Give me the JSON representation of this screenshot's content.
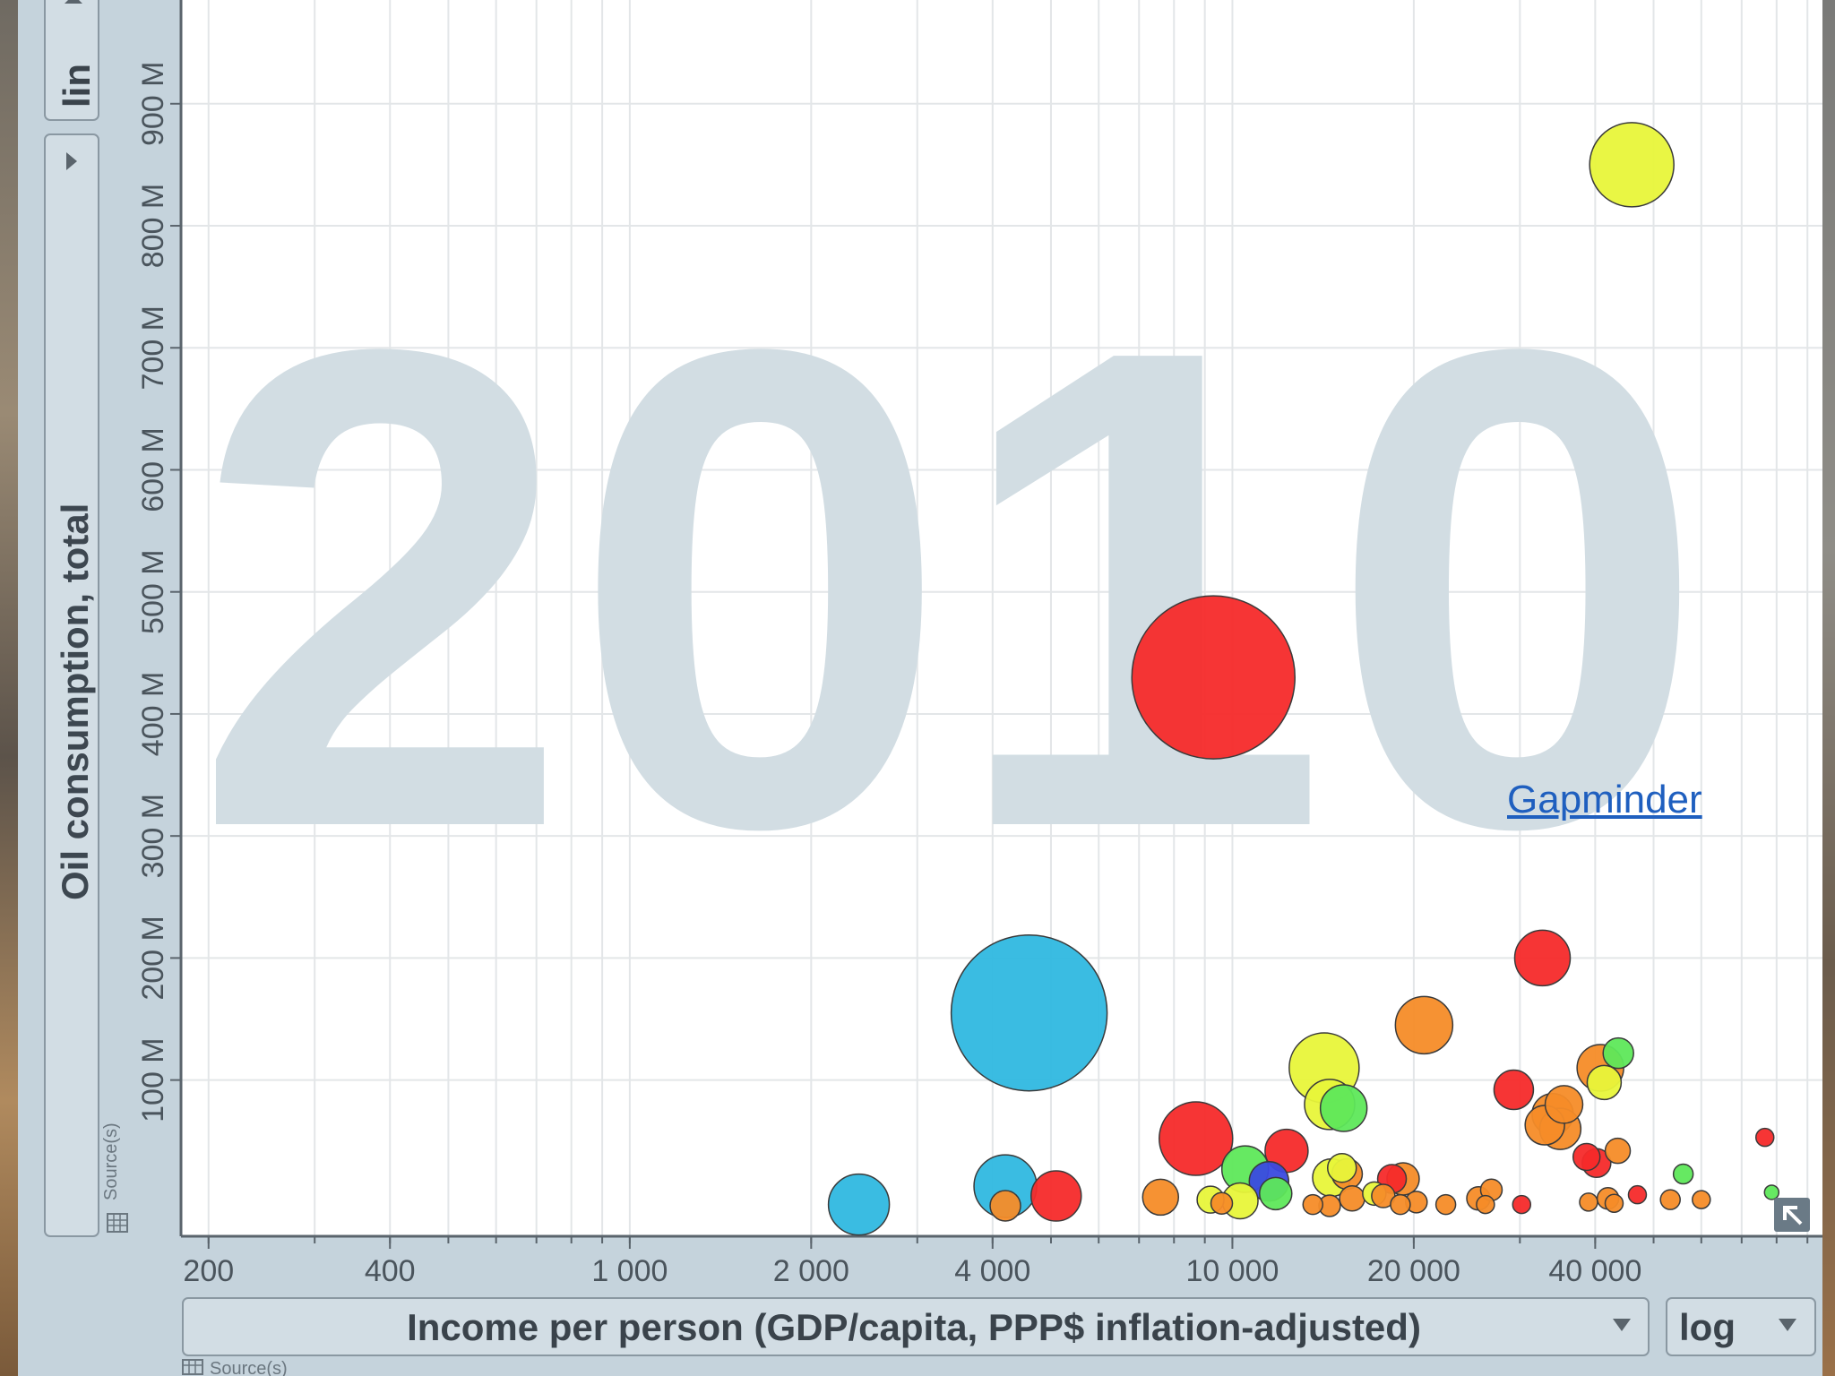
{
  "credit": {
    "label": "Gapminder"
  },
  "controls": {
    "y_scale": "lin",
    "x_scale": "log",
    "source_label": "Source(s)"
  },
  "colors": {
    "plot_bg": "#ffffff",
    "grid": "#e3e6e8",
    "axis": "#5a646c",
    "watermark": "#d2dde3",
    "bubble_stroke": "#3a3a3a"
  },
  "chart_data": {
    "type": "scatter",
    "year": "2010",
    "xlabel": "Income per person (GDP/capita, PPP$ inflation-adjusted)",
    "ylabel": "Oil consumption, total",
    "x_scale": "log",
    "y_scale": "linear",
    "xlim": [
      180,
      100000
    ],
    "ylim": [
      -28,
      985
    ],
    "x_ticks": [
      {
        "value": 200,
        "label": "200"
      },
      {
        "value": 400,
        "label": "400"
      },
      {
        "value": 1000,
        "label": "1 000"
      },
      {
        "value": 2000,
        "label": "2 000"
      },
      {
        "value": 4000,
        "label": "4 000"
      },
      {
        "value": 10000,
        "label": "10 000"
      },
      {
        "value": 20000,
        "label": "20 000"
      },
      {
        "value": 40000,
        "label": "40 000"
      }
    ],
    "y_ticks": [
      {
        "value": 100,
        "label": "100 M"
      },
      {
        "value": 200,
        "label": "200 M"
      },
      {
        "value": 300,
        "label": "300 M"
      },
      {
        "value": 400,
        "label": "400 M"
      },
      {
        "value": 500,
        "label": "500 M"
      },
      {
        "value": 600,
        "label": "600 M"
      },
      {
        "value": 700,
        "label": "700 M"
      },
      {
        "value": 800,
        "label": "800 M"
      },
      {
        "value": 900,
        "label": "900 M"
      }
    ],
    "grid": true,
    "points": [
      {
        "x": 46000,
        "y": 850,
        "r": 47,
        "color": "#e8f53a"
      },
      {
        "x": 9300,
        "y": 430,
        "r": 91,
        "color": "#f52a2a"
      },
      {
        "x": 4600,
        "y": 155,
        "r": 87,
        "color": "#2fb8e0"
      },
      {
        "x": 2400,
        "y": -2,
        "r": 34,
        "color": "#2fb8e0"
      },
      {
        "x": 4200,
        "y": 13,
        "r": 35,
        "color": "#2fb8e0"
      },
      {
        "x": 4200,
        "y": -3,
        "r": 17,
        "color": "#f58c28"
      },
      {
        "x": 5100,
        "y": 5,
        "r": 28,
        "color": "#f52a2a"
      },
      {
        "x": 7600,
        "y": 4,
        "r": 20,
        "color": "#f58c28"
      },
      {
        "x": 8700,
        "y": 52,
        "r": 41,
        "color": "#f52a2a"
      },
      {
        "x": 9200,
        "y": 2,
        "r": 15,
        "color": "#e8f53a"
      },
      {
        "x": 9600,
        "y": -1,
        "r": 12,
        "color": "#f58c28"
      },
      {
        "x": 10500,
        "y": 27,
        "r": 26,
        "color": "#5ee85a"
      },
      {
        "x": 10300,
        "y": 1,
        "r": 20,
        "color": "#e8f53a"
      },
      {
        "x": 11500,
        "y": 17,
        "r": 22,
        "color": "#3a4ae0"
      },
      {
        "x": 11800,
        "y": 7,
        "r": 18,
        "color": "#5ee85a"
      },
      {
        "x": 12300,
        "y": 42,
        "r": 24,
        "color": "#f52a2a"
      },
      {
        "x": 14200,
        "y": 110,
        "r": 39,
        "color": "#e8f53a"
      },
      {
        "x": 14500,
        "y": 80,
        "r": 28,
        "color": "#e8f53a"
      },
      {
        "x": 15300,
        "y": 77,
        "r": 26,
        "color": "#5ee85a"
      },
      {
        "x": 14600,
        "y": 20,
        "r": 21,
        "color": "#e8f53a"
      },
      {
        "x": 15500,
        "y": 23,
        "r": 17,
        "color": "#f58c28"
      },
      {
        "x": 15200,
        "y": 28,
        "r": 16,
        "color": "#e8f53a"
      },
      {
        "x": 13600,
        "y": -2,
        "r": 11,
        "color": "#f58c28"
      },
      {
        "x": 14500,
        "y": -3,
        "r": 12,
        "color": "#f58c28"
      },
      {
        "x": 15800,
        "y": 3,
        "r": 14,
        "color": "#f58c28"
      },
      {
        "x": 17200,
        "y": 7,
        "r": 13,
        "color": "#e8f53a"
      },
      {
        "x": 17800,
        "y": 5,
        "r": 13,
        "color": "#f58c28"
      },
      {
        "x": 18400,
        "y": 19,
        "r": 16,
        "color": "#f52a2a"
      },
      {
        "x": 19200,
        "y": 19,
        "r": 18,
        "color": "#f58c28"
      },
      {
        "x": 19000,
        "y": -2,
        "r": 11,
        "color": "#f58c28"
      },
      {
        "x": 20200,
        "y": 0,
        "r": 12,
        "color": "#f58c28"
      },
      {
        "x": 20800,
        "y": 145,
        "r": 32,
        "color": "#f58c28"
      },
      {
        "x": 22600,
        "y": -2,
        "r": 11,
        "color": "#f58c28"
      },
      {
        "x": 25600,
        "y": 3,
        "r": 13,
        "color": "#f58c28"
      },
      {
        "x": 26900,
        "y": 10,
        "r": 12,
        "color": "#f58c28"
      },
      {
        "x": 26300,
        "y": -2,
        "r": 10,
        "color": "#f58c28"
      },
      {
        "x": 30200,
        "y": -2,
        "r": 10,
        "color": "#f52a2a"
      },
      {
        "x": 32700,
        "y": 200,
        "r": 31,
        "color": "#f52a2a"
      },
      {
        "x": 29300,
        "y": 92,
        "r": 22,
        "color": "#f52a2a"
      },
      {
        "x": 34000,
        "y": 72,
        "r": 23,
        "color": "#f58c28"
      },
      {
        "x": 35500,
        "y": 80,
        "r": 21,
        "color": "#f58c28"
      },
      {
        "x": 33000,
        "y": 63,
        "r": 22,
        "color": "#f58c28"
      },
      {
        "x": 35000,
        "y": 60,
        "r": 23,
        "color": "#f58c28"
      },
      {
        "x": 38700,
        "y": 37,
        "r": 15,
        "color": "#f52a2a"
      },
      {
        "x": 40200,
        "y": 32,
        "r": 16,
        "color": "#f52a2a"
      },
      {
        "x": 40800,
        "y": 110,
        "r": 26,
        "color": "#f58c28"
      },
      {
        "x": 43700,
        "y": 122,
        "r": 17,
        "color": "#5ee85a"
      },
      {
        "x": 41400,
        "y": 98,
        "r": 19,
        "color": "#e8f53a"
      },
      {
        "x": 39000,
        "y": 0,
        "r": 10,
        "color": "#f58c28"
      },
      {
        "x": 42000,
        "y": 3,
        "r": 12,
        "color": "#f58c28"
      },
      {
        "x": 43000,
        "y": -1,
        "r": 10,
        "color": "#f58c28"
      },
      {
        "x": 43600,
        "y": 42,
        "r": 14,
        "color": "#f58c28"
      },
      {
        "x": 47000,
        "y": 6,
        "r": 10,
        "color": "#f52a2a"
      },
      {
        "x": 53300,
        "y": 2,
        "r": 11,
        "color": "#f58c28"
      },
      {
        "x": 56000,
        "y": 23,
        "r": 11,
        "color": "#5ee85a"
      },
      {
        "x": 60000,
        "y": 2,
        "r": 10,
        "color": "#f58c28"
      },
      {
        "x": 76500,
        "y": 53,
        "r": 10,
        "color": "#f52a2a"
      },
      {
        "x": 78500,
        "y": 8,
        "r": 8,
        "color": "#5ee85a"
      }
    ]
  }
}
